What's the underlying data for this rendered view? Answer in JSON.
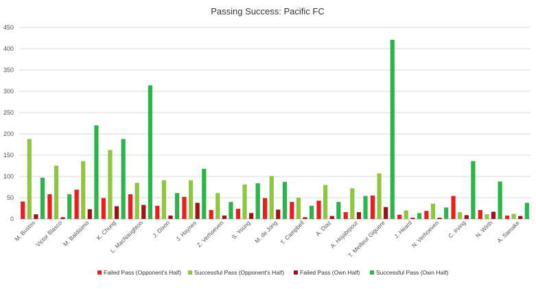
{
  "chart_data": {
    "type": "bar",
    "title": "Passing Success: Pacific FC",
    "xlabel": "",
    "ylabel": "",
    "ylim": [
      0,
      450
    ],
    "yticks": [
      0,
      50,
      100,
      150,
      200,
      250,
      300,
      350,
      400,
      450
    ],
    "grid": true,
    "legend_position": "bottom",
    "categories": [
      "M. Bustos",
      "Victor Blasco",
      "M. Baldisimo",
      "K. Chung",
      "L. MacNaughton",
      "J. Dixon",
      "J. Haynes",
      "Z. Verhoeven",
      "S. Young",
      "M. de Jong",
      "T. Campbell",
      "A. Diaz",
      "A. Hojabrpour",
      "T. Meilleur Giguere",
      "J. Heard",
      "N. Verhoeven",
      "C. Irving",
      "N. Wirth",
      "A. Samake"
    ],
    "series": [
      {
        "name": "Failed Pass (Opponent's Half)",
        "color": "#ee1c1c",
        "values": [
          41,
          58,
          69,
          49,
          58,
          31,
          52,
          21,
          24,
          49,
          40,
          43,
          16,
          55,
          10,
          19,
          54,
          21,
          8
        ]
      },
      {
        "name": "Successful Pass (Opponent's Half)",
        "color": "#8dc63f",
        "values": [
          188,
          125,
          136,
          162,
          85,
          91,
          91,
          61,
          81,
          101,
          50,
          80,
          72,
          107,
          20,
          36,
          16,
          11,
          12
        ]
      },
      {
        "name": "Failed Pass (Own Half)",
        "color": "#a50f15",
        "values": [
          11,
          4,
          23,
          30,
          33,
          8,
          38,
          8,
          14,
          22,
          4,
          7,
          16,
          28,
          3,
          3,
          9,
          17,
          7
        ]
      },
      {
        "name": "Successful Pass (Own Half)",
        "color": "#2ab54a",
        "values": [
          97,
          58,
          220,
          188,
          314,
          61,
          118,
          40,
          84,
          87,
          31,
          40,
          54,
          421,
          14,
          27,
          136,
          88,
          38
        ]
      }
    ]
  }
}
